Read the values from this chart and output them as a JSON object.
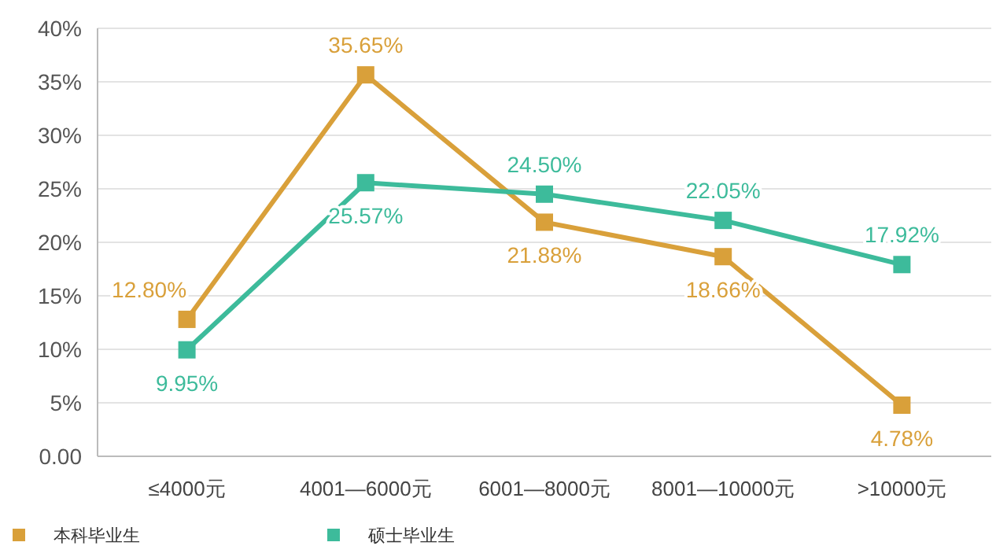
{
  "chart_data": {
    "type": "line",
    "categories": [
      "≤4000元",
      "4001—6000元",
      "6001—8000元",
      "8001—10000元",
      ">10000元"
    ],
    "series": [
      {
        "name": "本科毕业生",
        "color": "#d9a03a",
        "values": [
          12.8,
          35.65,
          21.88,
          18.66,
          4.78
        ],
        "value_labels": [
          "12.80%",
          "35.65%",
          "21.88%",
          "18.66%",
          "4.78%"
        ]
      },
      {
        "name": "硕士毕业生",
        "color": "#3dbb9b",
        "values": [
          9.95,
          25.57,
          24.5,
          22.05,
          17.92
        ],
        "value_labels": [
          "9.95%",
          "25.57%",
          "24.50%",
          "22.05%",
          "17.92%"
        ]
      }
    ],
    "ylim": [
      0,
      40
    ],
    "yticks": [
      {
        "value": 0,
        "label": "0.00"
      },
      {
        "value": 5,
        "label": "5%"
      },
      {
        "value": 10,
        "label": "10%"
      },
      {
        "value": 15,
        "label": "15%"
      },
      {
        "value": 20,
        "label": "20%"
      },
      {
        "value": 25,
        "label": "25%"
      },
      {
        "value": 30,
        "label": "30%"
      },
      {
        "value": 35,
        "label": "35%"
      },
      {
        "value": 40,
        "label": "40%"
      }
    ],
    "grid": "y",
    "legend": "bottom left",
    "marker": "square",
    "line_style": "solid"
  }
}
